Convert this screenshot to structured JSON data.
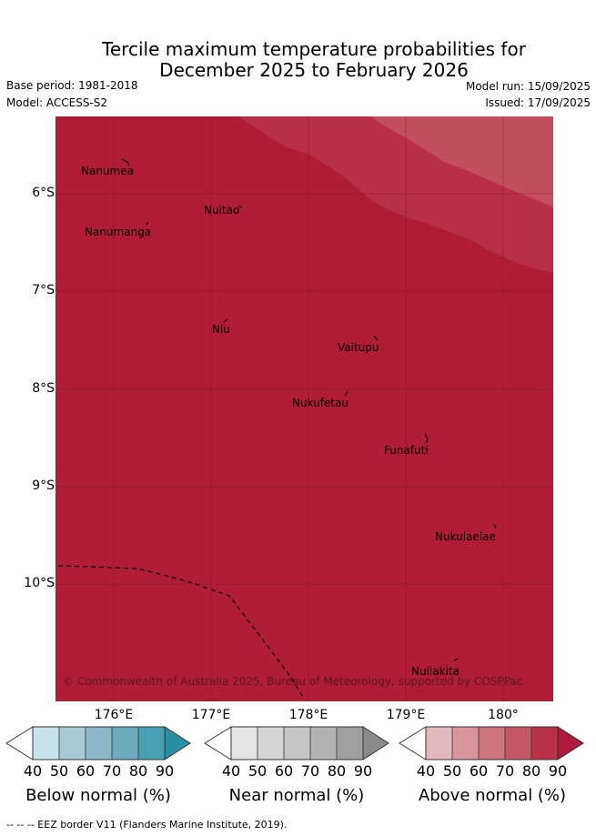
{
  "header": {
    "title_line1": "Tercile maximum temperature probabilities for",
    "title_line2": "December 2025 to February 2026",
    "base_period": "Base period: 1981-2018",
    "model": "Model: ACCESS-S2",
    "model_run": "Model run: 15/09/2025",
    "issued": "Issued: 17/09/2025"
  },
  "map": {
    "lat_labels": [
      "6°S",
      "7°S",
      "8°S",
      "9°S",
      "10°S"
    ],
    "lon_labels": [
      "176°E",
      "177°E",
      "178°E",
      "179°E",
      "180°"
    ],
    "places": [
      "Nanumea",
      "Nuitao",
      "Nanumanga",
      "Niu",
      "Vaitupu",
      "Nukufetau",
      "Funafuti",
      "Nukulaelae",
      "Nuilakita"
    ],
    "copyright": "© Commonwealth of Australia 2025, Bureau of Meteorology, supported by COSPPac",
    "colors": {
      "main": "#b01c36",
      "band_80": "#b92f47",
      "band_70": "#c1505c"
    }
  },
  "colorbars": {
    "ticks": [
      "40",
      "50",
      "60",
      "70",
      "80",
      "90"
    ],
    "below": {
      "label": "Below normal (%)",
      "colors": [
        "#ffffff",
        "#c8e2e9",
        "#a8cbd3",
        "#8ab8c6",
        "#6aacbd",
        "#49a0b2",
        "#2a8ea3"
      ]
    },
    "near": {
      "label": "Near normal (%)",
      "colors": [
        "#ffffff",
        "#e4e4e4",
        "#d5d5d5",
        "#c6c6c6",
        "#b3b3b3",
        "#a0a0a0",
        "#8a8a8a"
      ]
    },
    "above": {
      "label": "Above normal (%)",
      "colors": [
        "#ffffff",
        "#e3b8bf",
        "#d8959e",
        "#cf7580",
        "#c45866",
        "#b93348",
        "#ad1b3c"
      ]
    }
  },
  "footer": {
    "legend_text": "--  --  -- EEZ border V11 (Flanders Marine Institute, 2019)."
  }
}
